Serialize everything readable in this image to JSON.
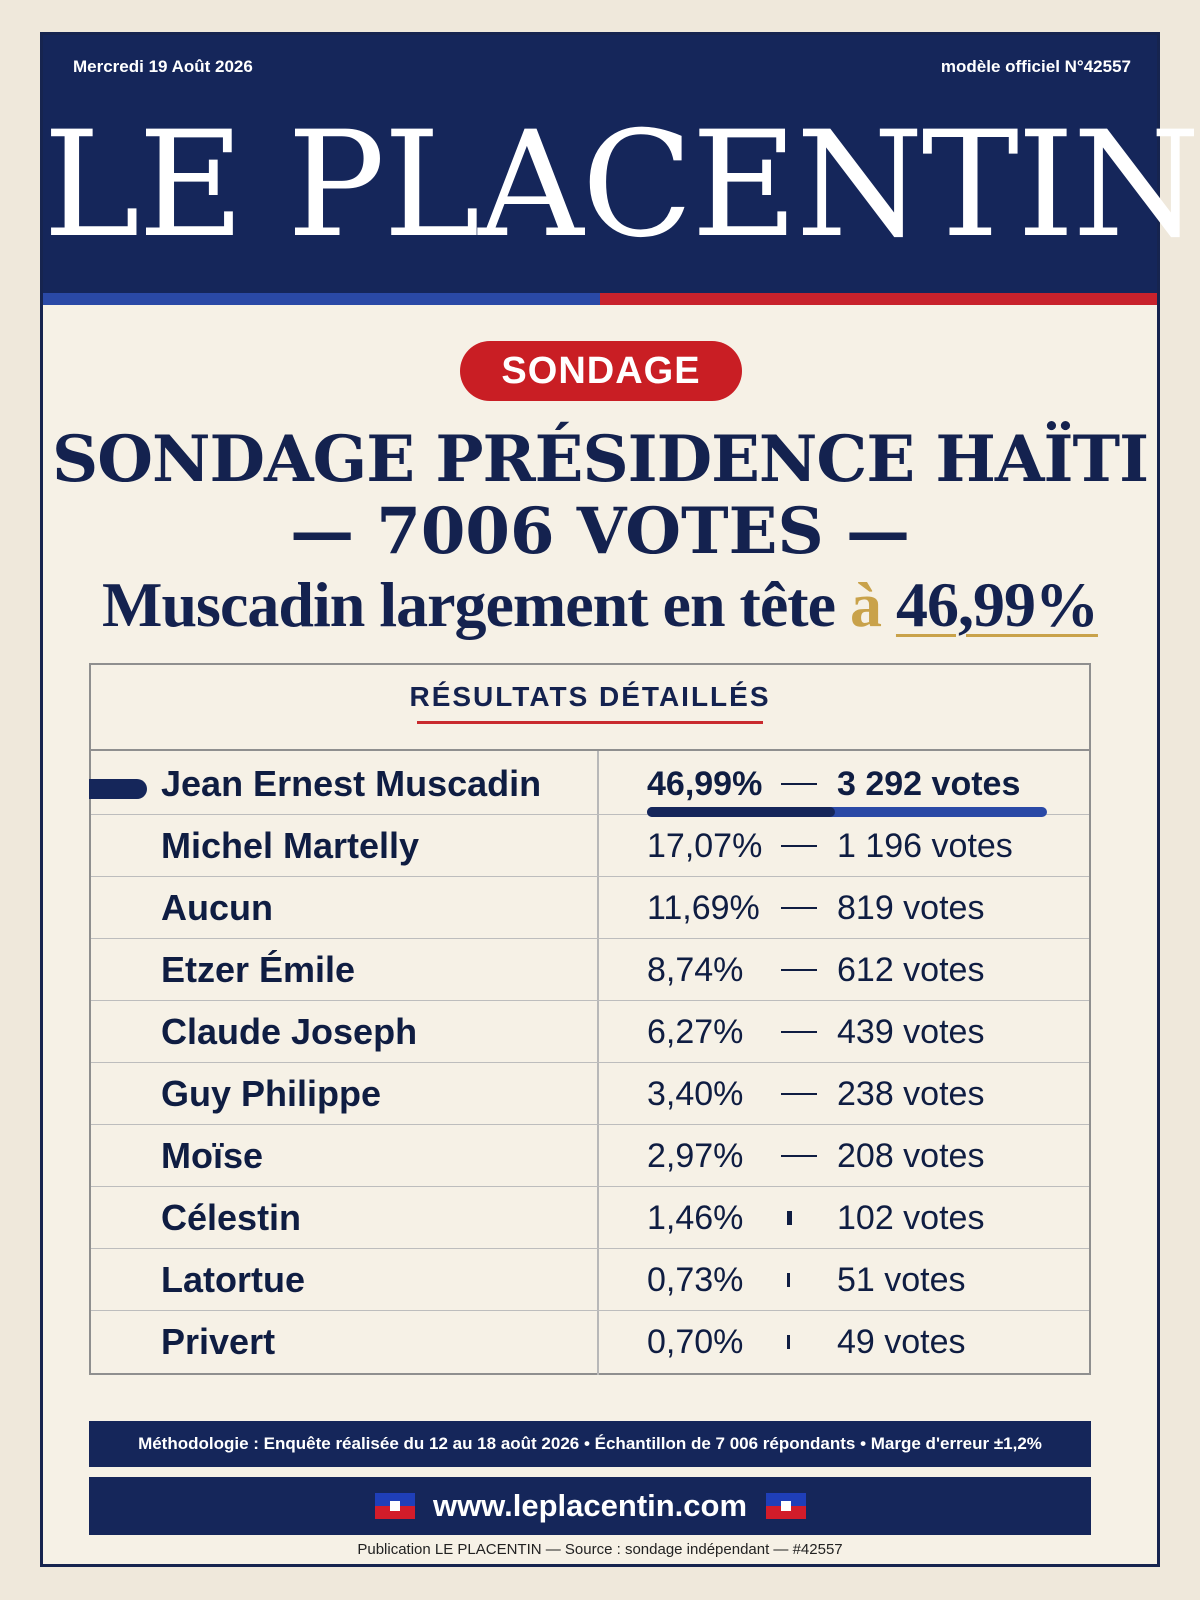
{
  "masthead": {
    "date": "Mercredi 19 Août 2026",
    "model": "modèle officiel N°42557",
    "title": "LE PLACENTIN"
  },
  "badge": "SONDAGE",
  "headline": {
    "line1": "SONDAGE PRÉSIDENCE HAÏTI",
    "line2": "— 7006 VOTES —",
    "line3_prefix": "Muscadin largement en tête ",
    "line3_connector": "à",
    "line3_value": "46,99%"
  },
  "results": {
    "title": "RÉSULTATS DÉTAILLÉS",
    "rows": [
      {
        "name": "Jean Ernest Muscadin",
        "percent": "46,99%",
        "votes": "3 292 votes",
        "share": 46.99
      },
      {
        "name": "Michel Martelly",
        "percent": "17,07%",
        "votes": "1 196 votes",
        "share": 17.07
      },
      {
        "name": "Aucun",
        "percent": "11,69%",
        "votes": "819 votes",
        "share": 11.69
      },
      {
        "name": "Etzer Émile",
        "percent": "8,74%",
        "votes": "612 votes",
        "share": 8.74
      },
      {
        "name": "Claude Joseph",
        "percent": "6,27%",
        "votes": "439 votes",
        "share": 6.27
      },
      {
        "name": "Guy Philippe",
        "percent": "3,40%",
        "votes": "238 votes",
        "share": 3.4
      },
      {
        "name": "Moïse",
        "percent": "2,97%",
        "votes": "208 votes",
        "share": 2.97
      },
      {
        "name": "Célestin",
        "percent": "1,46%",
        "votes": "102 votes",
        "share": 1.46
      },
      {
        "name": "Latortue",
        "percent": "0,73%",
        "votes": "51 votes",
        "share": 0.73
      },
      {
        "name": "Privert",
        "percent": "0,70%",
        "votes": "49 votes",
        "share": 0.7
      }
    ]
  },
  "methodology": "Méthodologie : Enquête réalisée du 12 au 18 août 2026 • Échantillon de 7 006 répondants • Marge d'erreur ±1,2%",
  "website": "www.leplacentin.com",
  "footer": "Publication LE PLACENTIN — Source : sondage indépendant — #42557",
  "colors": {
    "navy": "#15265a",
    "red": "#c91e24",
    "blue": "#2a49a6",
    "gold": "#c9a24a",
    "paper": "#f6f1e6"
  }
}
